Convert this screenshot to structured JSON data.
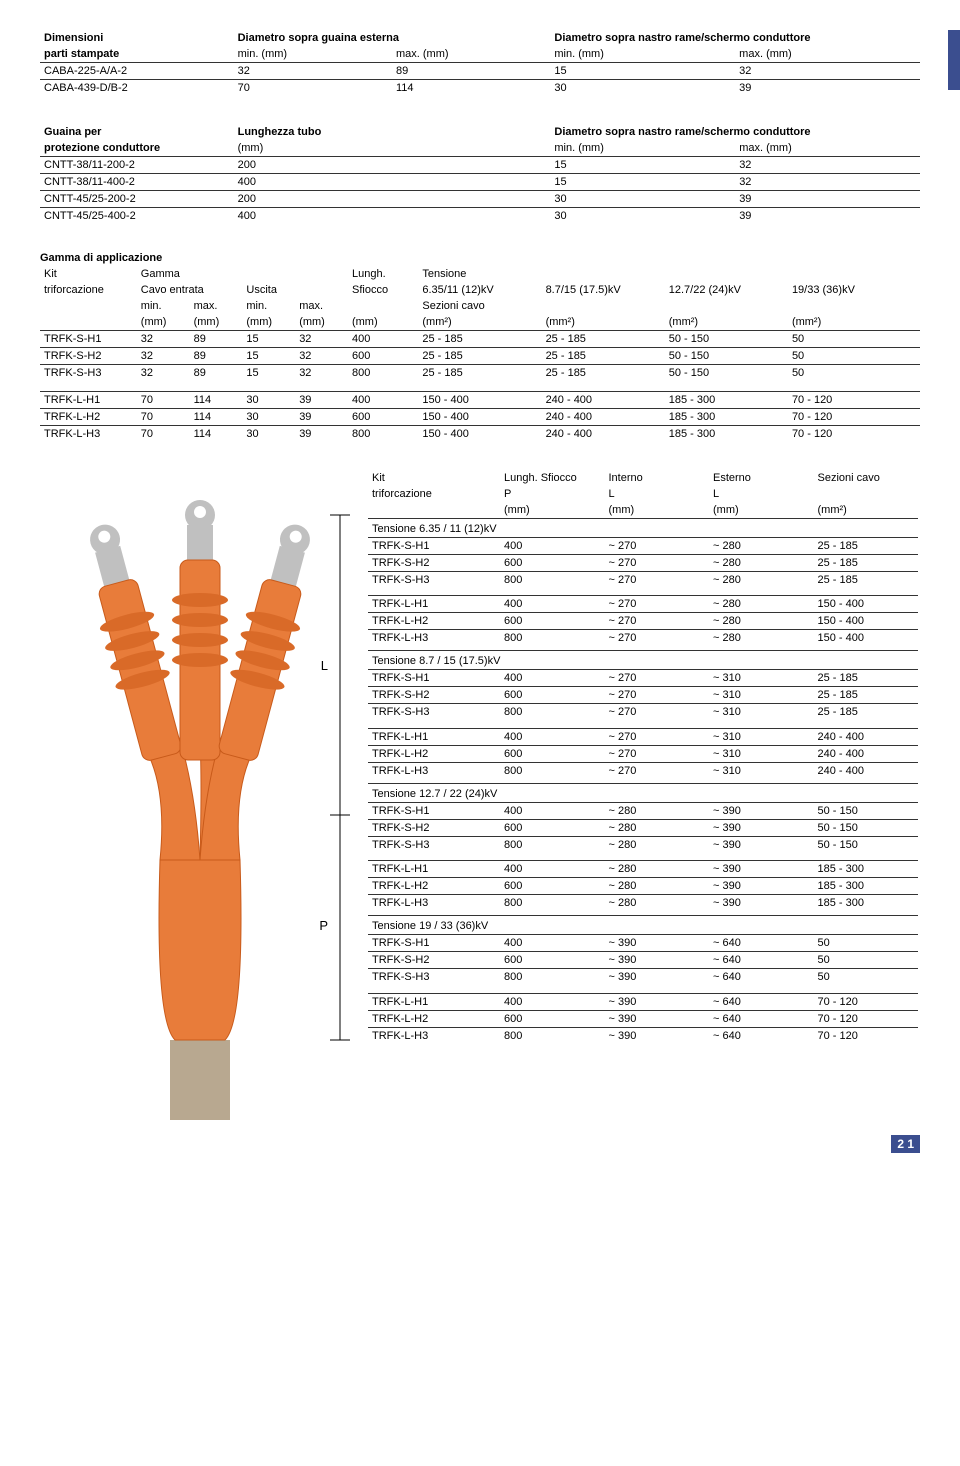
{
  "page_number": "2 1",
  "table1": {
    "headers": {
      "c1a": "Dimensioni",
      "c1b": "parti stampate",
      "c2a": "Diametro sopra guaina esterna",
      "c2b": "min. (mm)",
      "c2c": "max. (mm)",
      "c3a": "Diametro sopra nastro rame/schermo conduttore",
      "c3b": "min. (mm)",
      "c3c": "max. (mm)"
    },
    "rows": [
      [
        "CABA-225-A/A-2",
        "32",
        "89",
        "15",
        "32"
      ],
      [
        "CABA-439-D/B-2",
        "70",
        "114",
        "30",
        "39"
      ]
    ]
  },
  "table2": {
    "headers": {
      "c1a": "Guaina per",
      "c1b": "protezione conduttore",
      "c2a": "Lunghezza tubo",
      "c2b": "(mm)",
      "c3a": "Diametro sopra nastro rame/schermo conduttore",
      "c3b": "min. (mm)",
      "c3c": "max. (mm)"
    },
    "rows": [
      [
        "CNTT-38/11-200-2",
        "200",
        "15",
        "32"
      ],
      [
        "CNTT-38/11-400-2",
        "400",
        "15",
        "32"
      ],
      [
        "CNTT-45/25-200-2",
        "200",
        "30",
        "39"
      ],
      [
        "CNTT-45/25-400-2",
        "400",
        "30",
        "39"
      ]
    ]
  },
  "table3": {
    "title": "Gamma di applicazione",
    "headers": {
      "kit": "Kit",
      "kit2": "triforcazione",
      "gamma": "Gamma",
      "cavo": "Cavo entrata",
      "uscita": "Uscita",
      "lungh": "Lungh.",
      "sfiocco": "Sfiocco",
      "tens": "Tensione",
      "sez": "Sezioni cavo",
      "min": "min.",
      "max": "max.",
      "mm": "(mm)",
      "mm2": "(mm²)",
      "t1": "6.35/11 (12)kV",
      "t2": "8.7/15 (17.5)kV",
      "t3": "12.7/22 (24)kV",
      "t4": "19/33 (36)kV"
    },
    "groupS": [
      [
        "TRFK-S-H1",
        "32",
        "89",
        "15",
        "32",
        "400",
        "25 - 185",
        "25 - 185",
        "50 - 150",
        "50"
      ],
      [
        "TRFK-S-H2",
        "32",
        "89",
        "15",
        "32",
        "600",
        "25 - 185",
        "25 - 185",
        "50 - 150",
        "50"
      ],
      [
        "TRFK-S-H3",
        "32",
        "89",
        "15",
        "32",
        "800",
        "25 - 185",
        "25 - 185",
        "50 - 150",
        "50"
      ]
    ],
    "groupL": [
      [
        "TRFK-L-H1",
        "70",
        "114",
        "30",
        "39",
        "400",
        "150 - 400",
        "240 - 400",
        "185 - 300",
        "70 - 120"
      ],
      [
        "TRFK-L-H2",
        "70",
        "114",
        "30",
        "39",
        "600",
        "150 - 400",
        "240 - 400",
        "185 - 300",
        "70 - 120"
      ],
      [
        "TRFK-L-H3",
        "70",
        "114",
        "30",
        "39",
        "800",
        "150 - 400",
        "240 - 400",
        "185 - 300",
        "70 - 120"
      ]
    ]
  },
  "table4": {
    "headers": {
      "kit": "Kit",
      "kit2": "triforcazione",
      "ls": "Lungh. Sfiocco",
      "p": "P",
      "mm": "(mm)",
      "int": "Interno",
      "l": "L",
      "est": "Esterno",
      "sez": "Sezioni cavo",
      "mm2": "(mm²)"
    },
    "sections": [
      {
        "title": "Tensione 6.35 / 11 (12)kV",
        "gS": [
          [
            "TRFK-S-H1",
            "400",
            "~ 270",
            "~ 280",
            "25 - 185"
          ],
          [
            "TRFK-S-H2",
            "600",
            "~ 270",
            "~ 280",
            "25 - 185"
          ],
          [
            "TRFK-S-H3",
            "800",
            "~ 270",
            "~ 280",
            "25 - 185"
          ]
        ],
        "gL": [
          [
            "TRFK-L-H1",
            "400",
            "~ 270",
            "~ 280",
            "150 - 400"
          ],
          [
            "TRFK-L-H2",
            "600",
            "~ 270",
            "~ 280",
            "150 - 400"
          ],
          [
            "TRFK-L-H3",
            "800",
            "~ 270",
            "~ 280",
            "150 - 400"
          ]
        ]
      },
      {
        "title": "Tensione 8.7 / 15 (17.5)kV",
        "gS": [
          [
            "TRFK-S-H1",
            "400",
            "~ 270",
            "~ 310",
            "25 - 185"
          ],
          [
            "TRFK-S-H2",
            "600",
            "~ 270",
            "~ 310",
            "25 - 185"
          ],
          [
            "TRFK-S-H3",
            "800",
            "~ 270",
            "~ 310",
            "25 - 185"
          ]
        ],
        "gL": [
          [
            "TRFK-L-H1",
            "400",
            "~ 270",
            "~ 310",
            "240 - 400"
          ],
          [
            "TRFK-L-H2",
            "600",
            "~ 270",
            "~ 310",
            "240 - 400"
          ],
          [
            "TRFK-L-H3",
            "800",
            "~ 270",
            "~ 310",
            "240 - 400"
          ]
        ]
      },
      {
        "title": "Tensione 12.7 / 22 (24)kV",
        "gS": [
          [
            "TRFK-S-H1",
            "400",
            "~ 280",
            "~ 390",
            "50 - 150"
          ],
          [
            "TRFK-S-H2",
            "600",
            "~ 280",
            "~ 390",
            "50 - 150"
          ],
          [
            "TRFK-S-H3",
            "800",
            "~ 280",
            "~ 390",
            "50 - 150"
          ]
        ],
        "gL": [
          [
            "TRFK-L-H1",
            "400",
            "~ 280",
            "~ 390",
            "185 - 300"
          ],
          [
            "TRFK-L-H2",
            "600",
            "~ 280",
            "~ 390",
            "185 - 300"
          ],
          [
            "TRFK-L-H3",
            "800",
            "~ 280",
            "~ 390",
            "185 - 300"
          ]
        ]
      },
      {
        "title": "Tensione 19 / 33 (36)kV",
        "gS": [
          [
            "TRFK-S-H1",
            "400",
            "~ 390",
            "~ 640",
            "50"
          ],
          [
            "TRFK-S-H2",
            "600",
            "~ 390",
            "~ 640",
            "50"
          ],
          [
            "TRFK-S-H3",
            "800",
            "~ 390",
            "~ 640",
            "50"
          ]
        ],
        "gL": [
          [
            "TRFK-L-H1",
            "400",
            "~ 390",
            "~ 640",
            "70 - 120"
          ],
          [
            "TRFK-L-H2",
            "600",
            "~ 390",
            "~ 640",
            "70 - 120"
          ],
          [
            "TRFK-L-H3",
            "800",
            "~ 390",
            "~ 640",
            "70 - 120"
          ]
        ]
      }
    ]
  },
  "diagram": {
    "cable_color": "#e87c3a",
    "cable_dark": "#c85a1a",
    "shed_color": "#d96a28",
    "lug_color": "#c0c0c0",
    "braid_color": "#b8a890",
    "label_L": "L",
    "label_P": "P"
  }
}
